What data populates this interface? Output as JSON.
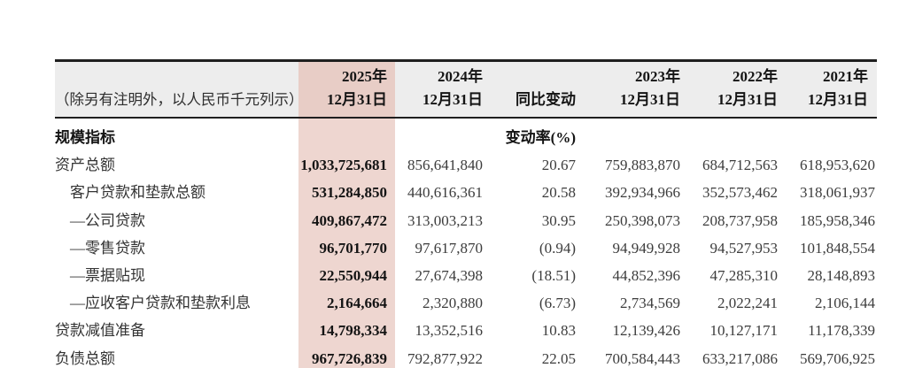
{
  "theme": {
    "header-bg": "#ededed",
    "highlight-header": "#e8cdc6",
    "highlight-body": "#eed6d0",
    "rule": "#1f1f1f",
    "text-strong": "#141414",
    "text-regular": "#3c3c3c"
  },
  "table": {
    "unit_note": "（除另有注明外，以人民币千元列示）",
    "columns": [
      {
        "year": "2025年",
        "date": "12月31日"
      },
      {
        "year": "2024年",
        "date": "12月31日"
      },
      {
        "year": "",
        "date": "同比变动"
      },
      {
        "year": "2023年",
        "date": "12月31日"
      },
      {
        "year": "2022年",
        "date": "12月31日"
      },
      {
        "year": "2021年",
        "date": "12月31日"
      }
    ],
    "section": {
      "label": "规模指标",
      "change_rate_label": "变动率(%)"
    },
    "rows": [
      {
        "label": "资产总额",
        "values": [
          "1,033,725,681",
          "856,641,840",
          "20.67",
          "759,883,870",
          "684,712,563",
          "618,953,620"
        ]
      },
      {
        "label": "客户贷款和垫款总额",
        "values": [
          "531,284,850",
          "440,616,361",
          "20.58",
          "392,934,966",
          "352,573,462",
          "318,061,937"
        ]
      },
      {
        "label": "—公司贷款",
        "values": [
          "409,867,472",
          "313,003,213",
          "30.95",
          "250,398,073",
          "208,737,958",
          "185,958,346"
        ]
      },
      {
        "label": "—零售贷款",
        "values": [
          "96,701,770",
          "97,617,870",
          "(0.94)",
          "94,949,928",
          "94,527,953",
          "101,848,554"
        ]
      },
      {
        "label": "—票据贴现",
        "values": [
          "22,550,944",
          "27,674,398",
          "(18.51)",
          "44,852,396",
          "47,285,310",
          "28,148,893"
        ]
      },
      {
        "label": "—应收客户贷款和垫款利息",
        "values": [
          "2,164,664",
          "2,320,880",
          "(6.73)",
          "2,734,569",
          "2,022,241",
          "2,106,144"
        ]
      },
      {
        "label": "贷款减值准备",
        "values": [
          "14,798,334",
          "13,352,516",
          "10.83",
          "12,139,426",
          "10,127,171",
          "11,178,339"
        ]
      },
      {
        "label": "负债总额",
        "values": [
          "967,726,839",
          "792,877,922",
          "22.05",
          "700,584,443",
          "633,217,086",
          "569,706,925"
        ]
      }
    ]
  }
}
